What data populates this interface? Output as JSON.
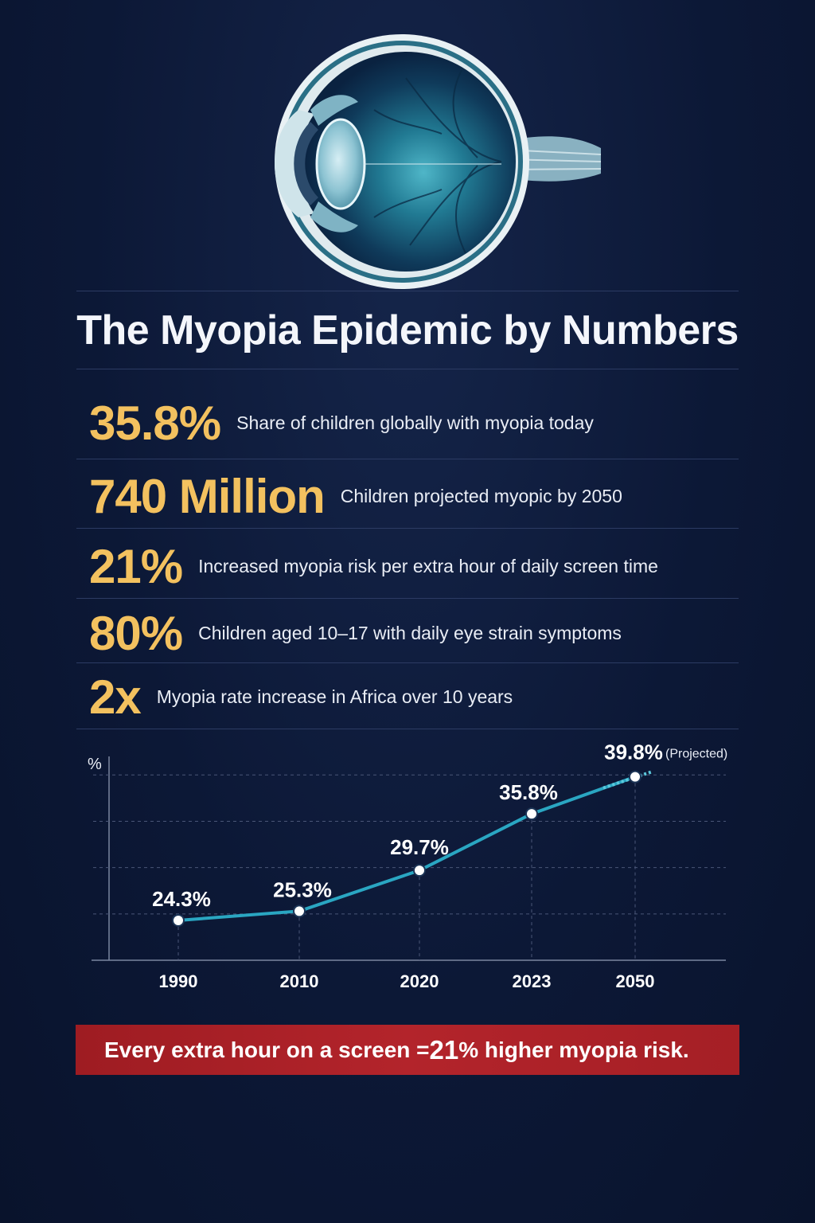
{
  "title": "The Myopia Epidemic by Numbers",
  "stats": [
    {
      "value": "35.8%",
      "label": "Share of children globally with myopia today"
    },
    {
      "value": "740 Million",
      "label": "Children projected myopic by 2050"
    },
    {
      "value": "21%",
      "label": "Increased myopia risk per extra hour of daily screen time"
    },
    {
      "value": "80%",
      "label": "Children aged 10–17 with daily eye strain symptoms"
    },
    {
      "value": "2x",
      "label": "Myopia rate increase in Africa over 10 years"
    }
  ],
  "chart_data": {
    "type": "line",
    "ylabel": "%",
    "x": [
      "1990",
      "2010",
      "2020",
      "2023",
      "2050"
    ],
    "series": [
      {
        "values": [
          24.3,
          25.3,
          29.7,
          35.8,
          39.8
        ]
      }
    ],
    "data_labels": [
      "24.3%",
      "25.3%",
      "29.7%",
      "35.8%",
      "39.8%"
    ],
    "projected_note": "(Projected)",
    "line_color": "#2aa6c2",
    "grid": true
  },
  "banner": {
    "before": "Every extra hour on a screen = ",
    "highlight": "21",
    "after": "% higher myopia risk."
  },
  "colors": {
    "background": "#0c1836",
    "accent": "#f3c15f",
    "banner": "#b3242b"
  }
}
